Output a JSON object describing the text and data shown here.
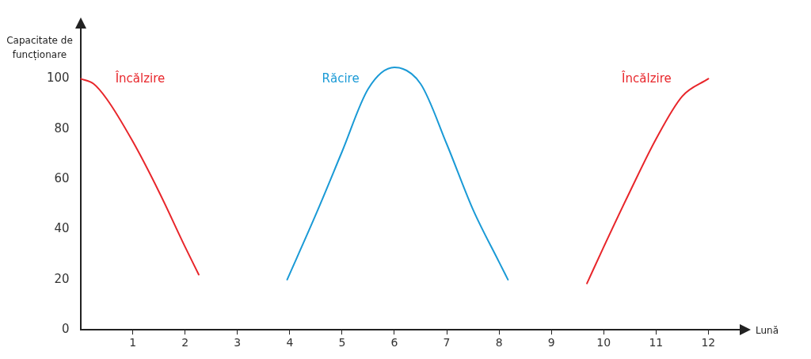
{
  "chart_data": {
    "type": "line",
    "xlabel": "Lună",
    "ylabel": "Capacitate de funcționare",
    "xlim": [
      0,
      12.6
    ],
    "ylim": [
      0,
      120
    ],
    "xticks": [
      1,
      2,
      3,
      4,
      5,
      6,
      7,
      8,
      9,
      10,
      11,
      12
    ],
    "yticks": [
      0,
      20,
      40,
      60,
      80,
      100
    ],
    "grid": false,
    "legend": false,
    "marker": "none",
    "line_style": "solid",
    "series": [
      {
        "name": "Încălzire",
        "color": "#e8262b",
        "x": [
          0,
          0.25,
          0.5,
          1,
          1.5,
          2,
          2.26
        ],
        "values": [
          100,
          98,
          92,
          75,
          55,
          33,
          22
        ]
      },
      {
        "name": "Răcire",
        "color": "#1a9ad6",
        "x": [
          3.95,
          4.5,
          5,
          5.5,
          6,
          6.5,
          7,
          7.5,
          8,
          8.17
        ],
        "values": [
          20,
          46,
          71,
          96,
          104.5,
          98,
          74,
          48,
          27,
          20
        ]
      },
      {
        "name": "Încălzire",
        "color": "#e8262b",
        "x": [
          9.68,
          10,
          10.5,
          11,
          11.5,
          12
        ],
        "values": [
          18.5,
          33,
          55,
          76,
          93,
          100
        ]
      }
    ]
  }
}
